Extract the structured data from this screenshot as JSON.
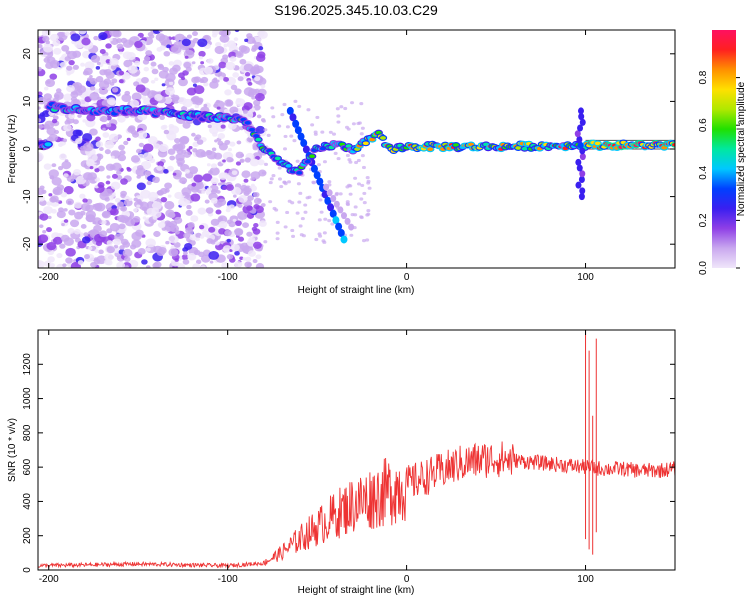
{
  "title": "S196.2025.345.10.03.C29",
  "chart_data": [
    {
      "type": "heatmap",
      "xlabel": "Height of straight line (km)",
      "ylabel": "Frequency (Hz)",
      "xlim": [
        -206,
        150
      ],
      "ylim": [
        -25,
        25
      ],
      "xticks": [
        -200,
        -100,
        0,
        100
      ],
      "yticks": [
        -20,
        -10,
        0,
        10,
        20
      ],
      "colorbar": {
        "label": "Normalized spectral amplitude",
        "range": [
          0,
          1
        ],
        "ticks": [
          "0.0",
          "0.2",
          "0.4",
          "0.6",
          "0.8"
        ],
        "colors": [
          "#f0e6fa",
          "#c9a8ef",
          "#8f3fe6",
          "#3a1ff0",
          "#0040ff",
          "#00c8ff",
          "#00e8a0",
          "#20e000",
          "#b0e800",
          "#ffe000",
          "#ff9000",
          "#ff2020",
          "#ff1060"
        ]
      },
      "trace": [
        {
          "x": -200,
          "freq": 9
        },
        {
          "x": -180,
          "freq": 8
        },
        {
          "x": -150,
          "freq": 8
        },
        {
          "x": -120,
          "freq": 7
        },
        {
          "x": -100,
          "freq": 6.5
        },
        {
          "x": -90,
          "freq": 6
        },
        {
          "x": -80,
          "freq": 0
        },
        {
          "x": -70,
          "freq": -3
        },
        {
          "x": -60,
          "freq": -5
        },
        {
          "x": -50,
          "freq": 0
        },
        {
          "x": -40,
          "freq": 1
        },
        {
          "x": -30,
          "freq": 0
        },
        {
          "x": -15,
          "freq": 3
        },
        {
          "x": -10,
          "freq": 0
        },
        {
          "x": 0,
          "freq": 0.5
        },
        {
          "x": 50,
          "freq": 0.5
        },
        {
          "x": 100,
          "freq": 0.8
        },
        {
          "x": 150,
          "freq": 0.8
        }
      ]
    },
    {
      "type": "line",
      "xlabel": "Height of straight line (km)",
      "ylabel": "SNR (10 * v/v)",
      "xlim": [
        -206,
        150
      ],
      "ylim": [
        0,
        1400
      ],
      "xticks": [
        -200,
        -100,
        0,
        100
      ],
      "yticks": [
        0,
        200,
        400,
        600,
        800,
        1000,
        1200
      ],
      "series": [
        {
          "name": "SNR",
          "color": "#ee3333",
          "points": [
            {
              "x": -206,
              "y": 25
            },
            {
              "x": -150,
              "y": 35
            },
            {
              "x": -100,
              "y": 25
            },
            {
              "x": -80,
              "y": 40
            },
            {
              "x": -70,
              "y": 100
            },
            {
              "x": -60,
              "y": 180
            },
            {
              "x": -50,
              "y": 250
            },
            {
              "x": -40,
              "y": 320
            },
            {
              "x": -30,
              "y": 380
            },
            {
              "x": -20,
              "y": 420
            },
            {
              "x": -10,
              "y": 460
            },
            {
              "x": 0,
              "y": 500
            },
            {
              "x": 10,
              "y": 540
            },
            {
              "x": 20,
              "y": 580
            },
            {
              "x": 30,
              "y": 620
            },
            {
              "x": 40,
              "y": 640
            },
            {
              "x": 50,
              "y": 650
            },
            {
              "x": 60,
              "y": 640
            },
            {
              "x": 70,
              "y": 630
            },
            {
              "x": 80,
              "y": 620
            },
            {
              "x": 90,
              "y": 610
            },
            {
              "x": 100,
              "y": 600
            },
            {
              "x": 110,
              "y": 590
            },
            {
              "x": 120,
              "y": 590
            },
            {
              "x": 130,
              "y": 580
            },
            {
              "x": 140,
              "y": 580
            },
            {
              "x": 150,
              "y": 590
            }
          ],
          "spikes": [
            {
              "x": 100,
              "high": 1400,
              "low": 180
            },
            {
              "x": 102,
              "high": 1280,
              "low": 120
            },
            {
              "x": 104,
              "high": 900,
              "low": 90
            },
            {
              "x": 106,
              "high": 1350,
              "low": 220
            }
          ]
        }
      ]
    }
  ]
}
